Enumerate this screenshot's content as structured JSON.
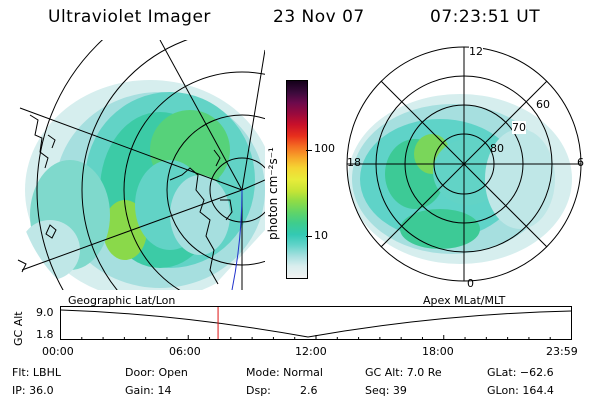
{
  "header": {
    "instrument": "Ultraviolet Imager",
    "date": "23 Nov 07",
    "time": "07:23:51 UT"
  },
  "left_panel": {
    "caption": "Geographic Lat/Lon"
  },
  "right_panel": {
    "caption": "Apex MLat/MLT",
    "mlt_labels": [
      "12",
      "18",
      "6",
      "0"
    ],
    "mlat_labels": [
      "60",
      "70",
      "80"
    ]
  },
  "colorbar": {
    "unit_label": "photon cm⁻²s⁻¹",
    "ticks": [
      "100",
      "10"
    ],
    "colors": [
      "#f2f2f2",
      "#d9eeee",
      "#a8e0e0",
      "#5fd3c8",
      "#33c9b4",
      "#3fcd8c",
      "#5ed46a",
      "#8fdc46",
      "#c4e436",
      "#e8ec3a",
      "#f5d432",
      "#f7a82a",
      "#f46a22",
      "#e8301c",
      "#c8102a",
      "#9c0a3c",
      "#6c0a4c",
      "#3c0a3c",
      "#14001a"
    ]
  },
  "altitude_plot": {
    "ylabel": "GC Alt",
    "yticks": [
      "9.0",
      "1.8"
    ],
    "xticks": [
      "00:00",
      "06:00",
      "12:00",
      "18:00",
      "23:59"
    ],
    "marker_time_hours": 7.4
  },
  "info": {
    "filter": "Flt: LBHL",
    "door": "Door: Open",
    "mode": "Mode: Normal",
    "gc_alt": "GC Alt: 7.0 Re",
    "glat": "GLat: −62.6",
    "ip": "IP: 36.0",
    "gain": "Gain: 14",
    "dsp_label": "Dsp:",
    "dsp_value": "2.6",
    "seq": "Seq: 39",
    "glon": "GLon: 164.4"
  }
}
